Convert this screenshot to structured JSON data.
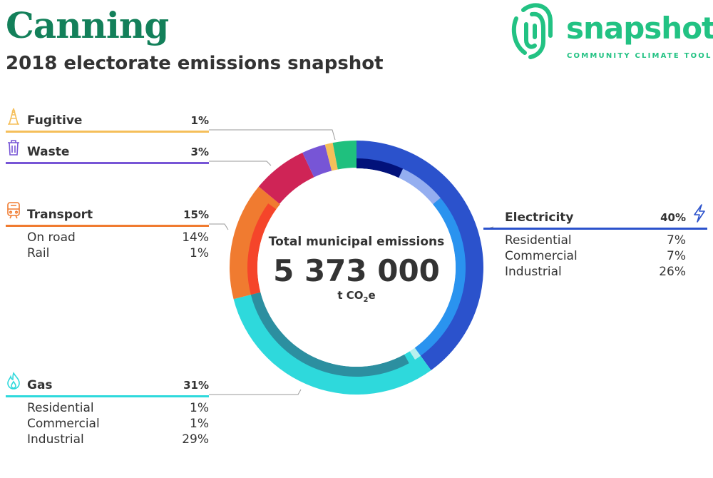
{
  "header": {
    "title": "Canning",
    "subtitle": "2018 electorate emissions snapshot"
  },
  "logo": {
    "word": "snapshot",
    "tagline": "COMMUNITY CLIMATE TOOL",
    "color": "#22c283",
    "icon": "fingerprint-icon"
  },
  "total": {
    "label": "Total municipal emissions",
    "value": "5 373 000",
    "unit_prefix": "t CO",
    "unit_sub": "2",
    "unit_suffix": "e"
  },
  "chart_data": {
    "type": "pie",
    "title": "Total municipal emissions",
    "total": 5373000,
    "unit": "t CO2e",
    "categories": [
      {
        "name": "Electricity",
        "pct_label": "40%",
        "value": 40,
        "color": "#2b52cc",
        "icon": "lightning-icon",
        "subs": [
          {
            "name": "Residential",
            "pct_label": "7%",
            "value": 7,
            "color": "#02127a"
          },
          {
            "name": "Commercial",
            "pct_label": "7%",
            "value": 7,
            "color": "#94aef0"
          },
          {
            "name": "Industrial",
            "pct_label": "26%",
            "value": 26,
            "color": "#2a93ef"
          }
        ]
      },
      {
        "name": "Gas",
        "pct_label": "31%",
        "value": 31,
        "color": "#2ed9dc",
        "icon": "flame-icon",
        "subs": [
          {
            "name": "Residential",
            "pct_label": "1%",
            "value": 1,
            "color": "#b8f0ee"
          },
          {
            "name": "Commercial",
            "pct_label": "1%",
            "value": 1,
            "color": "#2ed9dc"
          },
          {
            "name": "Industrial",
            "pct_label": "29%",
            "value": 29,
            "color": "#2c8fa0"
          }
        ]
      },
      {
        "name": "Transport",
        "pct_label": "15%",
        "value": 15,
        "color": "#f07b30",
        "icon": "train-icon",
        "subs": [
          {
            "name": "On road",
            "pct_label": "14%",
            "value": 14,
            "color": "#f5452a"
          },
          {
            "name": "Rail",
            "pct_label": "1%",
            "value": 1,
            "color": "#f07b30"
          }
        ]
      },
      {
        "name": "",
        "pct_label": "",
        "value": 7,
        "color": "#cf2456",
        "subs": []
      },
      {
        "name": "Waste",
        "pct_label": "3%",
        "value": 3,
        "color": "#7755d6",
        "icon": "trash-icon",
        "subs": []
      },
      {
        "name": "Fugitive",
        "pct_label": "1%",
        "value": 1,
        "color": "#f5bf5a",
        "icon": "oil-rig-icon",
        "subs": []
      },
      {
        "name": "",
        "pct_label": "",
        "value": 3,
        "color": "#1fc07e",
        "subs": []
      }
    ]
  }
}
